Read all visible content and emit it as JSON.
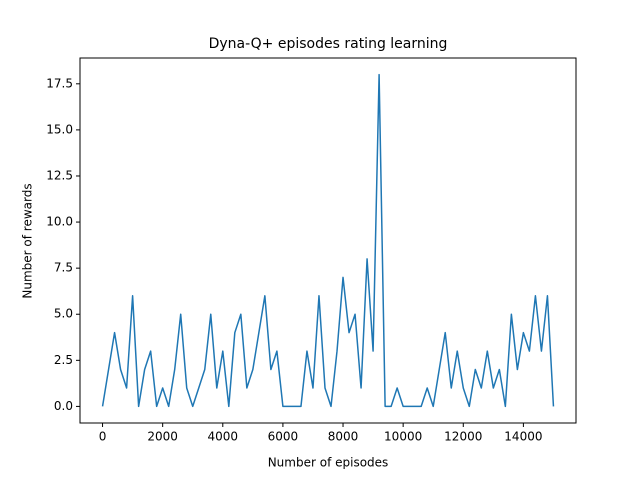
{
  "chart_data": {
    "type": "line",
    "title": "Dyna-Q+ episodes rating learning",
    "xlabel": "Number of episodes",
    "ylabel": "Number of rewards",
    "color": "#1f77b4",
    "x": [
      0,
      200,
      400,
      600,
      800,
      1000,
      1200,
      1400,
      1600,
      1800,
      2000,
      2200,
      2400,
      2600,
      2800,
      3000,
      3200,
      3400,
      3600,
      3800,
      4000,
      4200,
      4400,
      4600,
      4800,
      5000,
      5200,
      5400,
      5600,
      5800,
      6000,
      6200,
      6400,
      6600,
      6800,
      7000,
      7200,
      7400,
      7600,
      7800,
      8000,
      8200,
      8400,
      8600,
      8800,
      9000,
      9200,
      9400,
      9600,
      9800,
      10000,
      10200,
      10400,
      10600,
      10800,
      11000,
      11200,
      11400,
      11600,
      11800,
      12000,
      12200,
      12400,
      12600,
      12800,
      13000,
      13200,
      13400,
      13600,
      13800,
      14000,
      14200,
      14400,
      14600,
      14800,
      15000
    ],
    "values": [
      0,
      2,
      4,
      2,
      1,
      6,
      0,
      2,
      3,
      0,
      1,
      0,
      2,
      5,
      1,
      0,
      1,
      2,
      5,
      1,
      3,
      0,
      4,
      5,
      1,
      2,
      4,
      6,
      2,
      3,
      0,
      0,
      0,
      0,
      3,
      1,
      6,
      1,
      0,
      3,
      7,
      4,
      5,
      1,
      8,
      3,
      18,
      0,
      0,
      1,
      0,
      0,
      0,
      0,
      1,
      0,
      2,
      4,
      1,
      3,
      1,
      0,
      2,
      1,
      3,
      1,
      2,
      0,
      5,
      2,
      4,
      3,
      6,
      3,
      6,
      0
    ],
    "xlim": [
      -750,
      15750
    ],
    "xticks": [
      0,
      2000,
      4000,
      6000,
      8000,
      10000,
      12000,
      14000
    ],
    "ylim": [
      -0.9,
      18.9
    ],
    "yticks": [
      {
        "value": 0,
        "label": "0.0"
      },
      2.5,
      {
        "value": 5,
        "label": "5.0"
      },
      7.5,
      {
        "value": 10,
        "label": "10.0"
      },
      12.5,
      {
        "value": 15,
        "label": "15.0"
      },
      17.5
    ]
  }
}
